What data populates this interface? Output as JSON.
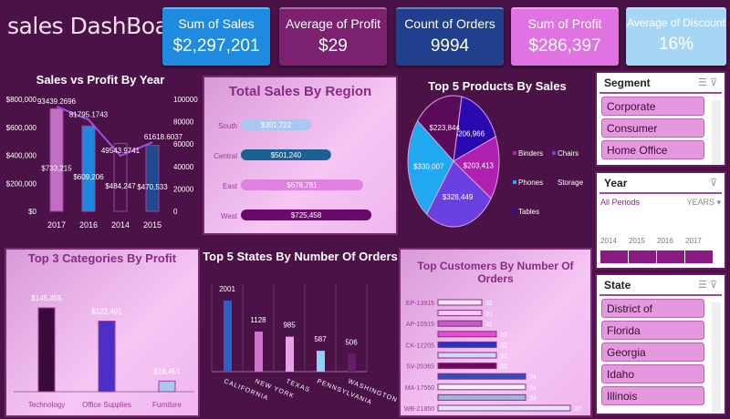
{
  "title": "sales DashBoard",
  "kpis": [
    {
      "label": "Sum of Sales",
      "value": "$2,297,201",
      "color": "#1e8ae0"
    },
    {
      "label": "Average of Profit",
      "value": "$29",
      "color": "#7b2170"
    },
    {
      "label": "Count of Orders",
      "value": "9994",
      "color": "#203f8c"
    },
    {
      "label": "Sum of Profit",
      "value": "$286,397",
      "color": "#e072e2"
    },
    {
      "label": "Average of Discount",
      "value": "16%",
      "color": "#a6d6f6"
    }
  ],
  "chart_data": [
    {
      "id": "sales-profit-year",
      "type": "bar+line",
      "title": "Sales vs Profit By Year",
      "categories": [
        "2017",
        "2016",
        "2014",
        "2015"
      ],
      "series": [
        {
          "name": "Sales",
          "type": "bar",
          "values": [
            733215,
            609206,
            484247,
            470533
          ],
          "labels": [
            "$733,215",
            "$609,206",
            "$484,247",
            "$470,533"
          ],
          "colors": [
            "#c070c0",
            "#1e88e0",
            "#4a1246",
            "#1f4a90"
          ]
        },
        {
          "name": "Profit",
          "type": "line",
          "axis": "right",
          "values": [
            93439.2696,
            81795.1743,
            49543.9741,
            61618.6037
          ],
          "labels": [
            "93439.2696",
            "81795.1743",
            "49543.9741",
            "61618.6037"
          ],
          "color": "#a050e0"
        }
      ],
      "ylim": [
        0,
        800000
      ],
      "yticks": [
        "$0",
        "$200,000",
        "$400,000",
        "$600,000",
        "$800,000"
      ],
      "y2lim": [
        0,
        100000
      ],
      "y2ticks": [
        "0",
        "20000",
        "40000",
        "60000",
        "80000",
        "100000"
      ]
    },
    {
      "id": "sales-region",
      "type": "bar",
      "orientation": "horizontal",
      "title": "Total Sales By Region",
      "categories": [
        "South",
        "Central",
        "East",
        "West"
      ],
      "values": [
        391722,
        501240,
        678781,
        725458
      ],
      "labels": [
        "$391,722",
        "$501,240",
        "$678,781",
        "$725,458"
      ],
      "colors": [
        "#a8c8f0",
        "#1a6090",
        "#e080e0",
        "#6a0a6a"
      ]
    },
    {
      "id": "top-products",
      "type": "pie",
      "title": "Top 5 Products By Sales",
      "categories": [
        "Binders",
        "Chairs",
        "Phones",
        "Storage",
        "Tables"
      ],
      "values": [
        203413,
        328449,
        330007,
        223844,
        206966
      ],
      "labels": [
        "$203,413",
        "$328,449",
        "$330,007",
        "$223,844",
        "$206,966"
      ],
      "colors": [
        "#b020b0",
        "#6a40e0",
        "#20a8f0",
        "#5a0a5a",
        "#2a0ab0"
      ]
    },
    {
      "id": "top-categories",
      "type": "bar",
      "title": "Top 3 Categories By Profit",
      "categories": [
        "Technology",
        "Office Supplies",
        "Furniture"
      ],
      "values": [
        145455,
        122491,
        18451
      ],
      "labels": [
        "$145,455",
        "$122,491",
        "$18,451"
      ],
      "colors": [
        "#3a0a3a",
        "#4a30c8",
        "#a8c8f0"
      ]
    },
    {
      "id": "top-states",
      "type": "bar",
      "title": "Top 5 States By Number Of Orders",
      "categories": [
        "CALIFORNIA",
        "NEW YORK",
        "TEXAS",
        "PENNSYLVANIA",
        "WASHINGTON"
      ],
      "values": [
        2001,
        1128,
        985,
        587,
        506
      ],
      "labels": [
        "2001",
        "1128",
        "985",
        "587",
        "506"
      ],
      "colors": [
        "#2a60c8",
        "#d070d0",
        "#e8a0e8",
        "#90d0f8",
        "#6a1a6a"
      ]
    },
    {
      "id": "top-customers",
      "type": "bar",
      "orientation": "horizontal",
      "title": "Top Customers By Number Of Orders",
      "categories": [
        "EP-13915",
        "",
        "AP-10915",
        "",
        "CK-12205",
        "",
        "SV-20365",
        "",
        "MA-17560",
        "",
        "WB-21850"
      ],
      "values": [
        31,
        31,
        31,
        32,
        32,
        32,
        32,
        34,
        34,
        34,
        37
      ],
      "labels": [
        "31",
        "31",
        "31",
        "32",
        "32",
        "32",
        "32",
        "34",
        "34",
        "34",
        "37"
      ],
      "colors": [
        "#f8e8f8",
        "#f0d0f0",
        "#c060c0",
        "#e050d0",
        "#3030c0",
        "#d0d8f8",
        "#6a0a5a",
        "#2a50c0",
        "#f8f0ff",
        "#a8b0e0",
        "#e0e8ff"
      ],
      "xlim": [
        28,
        37
      ]
    }
  ],
  "slicers": {
    "segment": {
      "title": "Segment",
      "items": [
        "Corporate",
        "Consumer",
        "Home Office"
      ]
    },
    "year": {
      "title": "Year",
      "all": "All Periods",
      "unit": "YEARS ▾",
      "years": [
        "2014",
        "2015",
        "2016",
        "2017"
      ]
    },
    "state": {
      "title": "State",
      "items": [
        "District of Columbia",
        "Florida",
        "Georgia",
        "Idaho",
        "Illinois"
      ]
    }
  }
}
